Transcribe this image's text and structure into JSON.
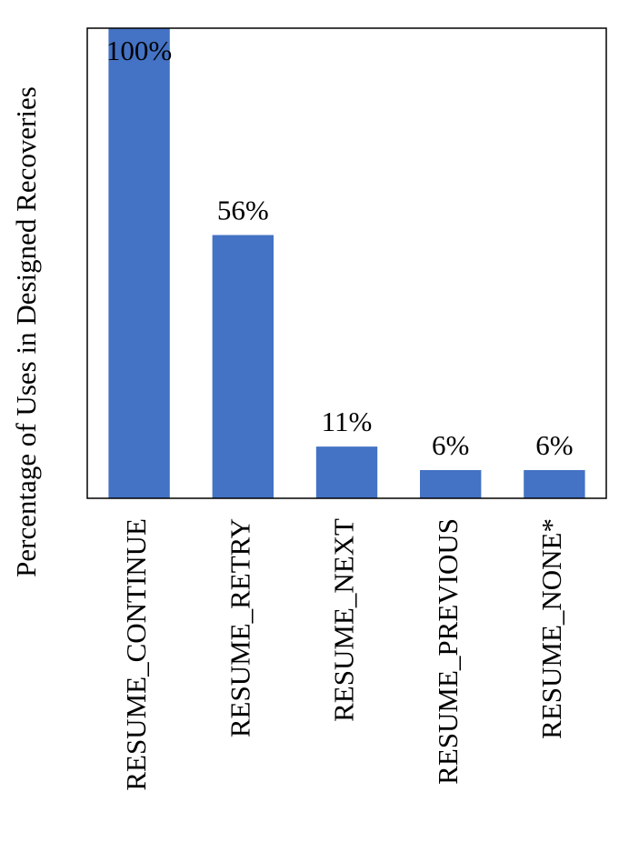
{
  "chart_data": {
    "type": "bar",
    "y_label": "Percentage of Uses in Designed Recoveries",
    "categories": [
      "RESUME_CONTINUE",
      "RESUME_RETRY",
      "RESUME_NEXT",
      "RESUME_PREVIOUS",
      "RESUME_NONE*"
    ],
    "values": [
      100,
      56,
      11,
      6,
      6
    ],
    "value_labels": [
      "100%",
      "56%",
      "11%",
      "6%",
      "6%"
    ],
    "color": "#4472c4",
    "ylim": [
      0,
      100
    ]
  }
}
